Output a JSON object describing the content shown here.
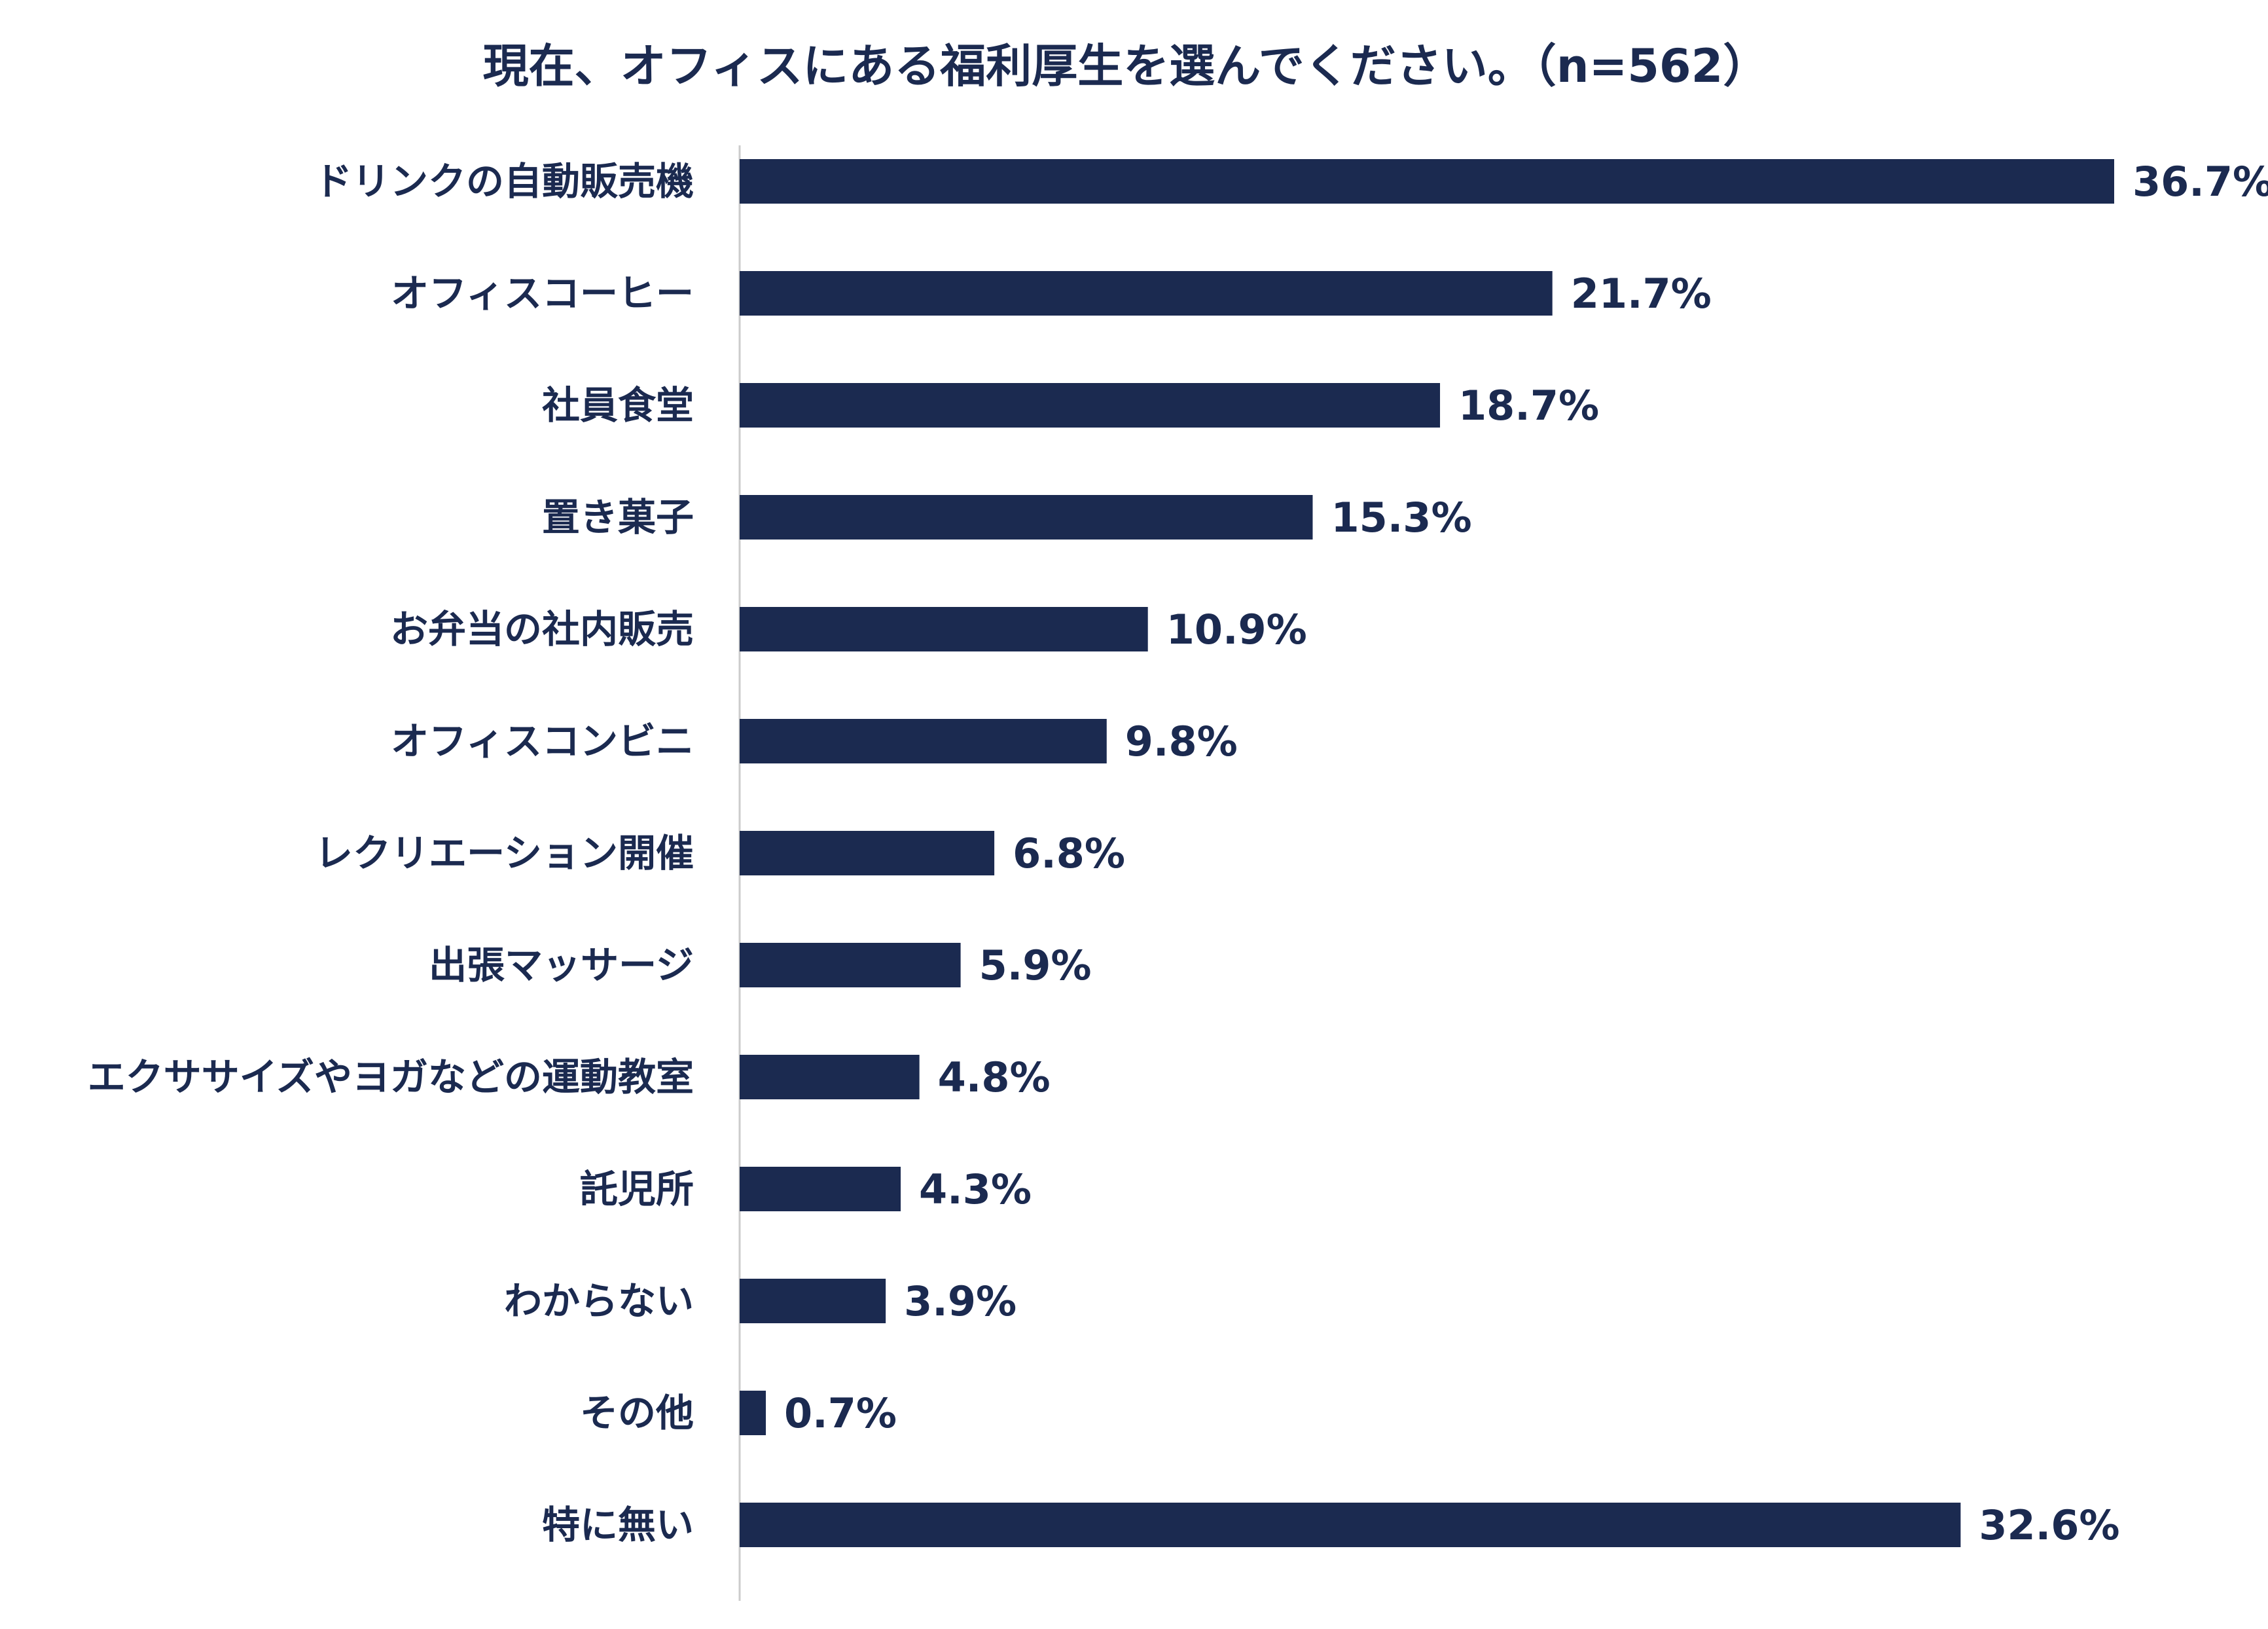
{
  "chart_data": {
    "type": "bar",
    "orientation": "horizontal",
    "title": "現在、オフィスにある福利厚生を選んでください。（n=562）",
    "categories": [
      "ドリンクの自動販売機",
      "オフィスコーヒー",
      "社員食堂",
      "置き菓子",
      "お弁当の社内販売",
      "オフィスコンビニ",
      "レクリエーション開催",
      "出張マッサージ",
      "エクササイズやヨガなどの運動教室",
      "託児所",
      "わからない",
      "その他",
      "特に無い"
    ],
    "values": [
      36.7,
      21.7,
      18.7,
      15.3,
      10.9,
      9.8,
      6.8,
      5.9,
      4.8,
      4.3,
      3.9,
      0.7,
      32.6
    ],
    "value_labels": [
      "36.7%",
      "21.7%",
      "18.7%",
      "15.3%",
      "10.9%",
      "9.8%",
      "6.8%",
      "5.9%",
      "4.8%",
      "4.3%",
      "3.9%",
      "0.7%",
      "32.6%"
    ],
    "xlim": [
      0,
      36.7
    ],
    "grid": false,
    "bar_color": "#1b2a50",
    "text_color": "#1b2a50",
    "axis_color": "#cccccc"
  }
}
